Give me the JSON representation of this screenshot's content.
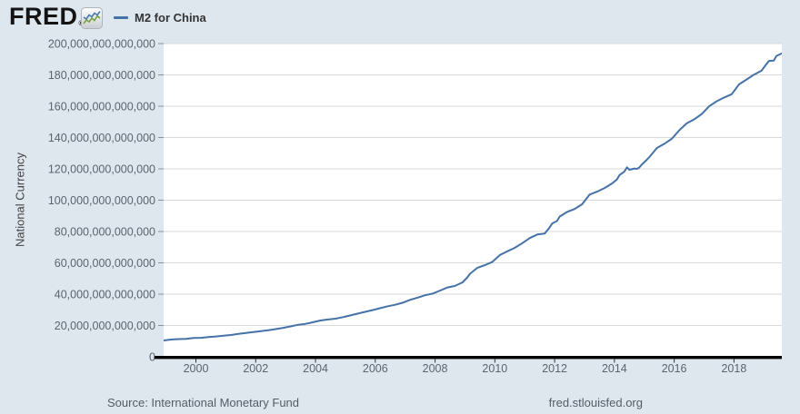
{
  "header": {
    "logo_text": "FRED",
    "registered_mark": "®",
    "legend": {
      "series_label": "M2 for China"
    }
  },
  "footer": {
    "source": "Source: International Monetary Fund",
    "site": "fred.stlouisfed.org"
  },
  "colors": {
    "background": "#dee6ee",
    "plot_background": "#ffffff",
    "gridline": "#d9d9d9",
    "series_line": "#4572a7",
    "axis_line": "#000000",
    "tick": "#8a9299",
    "xtick": "#333333",
    "label_text": "#5a6570",
    "logo_icon_blue": "#4a7bb0",
    "logo_icon_green": "#79a23e"
  },
  "chart_data": {
    "type": "line",
    "title": "M2 for China",
    "xlabel": "",
    "ylabel": "National Currency",
    "unit": "National Currency (units)",
    "value_multiplier": 1000000000000,
    "grid": "horizontal",
    "legend_position": "top-left",
    "x_range": [
      1998.92,
      2019.6
    ],
    "ylim_trillions": [
      0,
      200
    ],
    "y_ticks_trillions": [
      0,
      20,
      40,
      60,
      80,
      100,
      120,
      140,
      160,
      180,
      200
    ],
    "y_tick_labels": [
      "0",
      "20,000,000,000,000",
      "40,000,000,000,000",
      "60,000,000,000,000",
      "80,000,000,000,000",
      "100,000,000,000,000",
      "120,000,000,000,000",
      "140,000,000,000,000",
      "160,000,000,000,000",
      "180,000,000,000,000",
      "200,000,000,000,000"
    ],
    "x_tick_labels": [
      "2000",
      "2002",
      "2004",
      "2006",
      "2008",
      "2010",
      "2012",
      "2014",
      "2016",
      "2018"
    ],
    "x_ticks_years": [
      2000,
      2002,
      2004,
      2006,
      2008,
      2010,
      2012,
      2014,
      2016,
      2018
    ],
    "series": [
      {
        "name": "M2 for China",
        "color": "#4572a7",
        "points_year_trillions": [
          [
            1998.92,
            10.45
          ],
          [
            1999.17,
            11.03
          ],
          [
            1999.42,
            11.29
          ],
          [
            1999.67,
            11.45
          ],
          [
            1999.92,
            11.99
          ],
          [
            2000.17,
            12.13
          ],
          [
            2000.42,
            12.61
          ],
          [
            2000.67,
            13.0
          ],
          [
            2000.92,
            13.46
          ],
          [
            2001.17,
            13.89
          ],
          [
            2001.42,
            14.6
          ],
          [
            2001.67,
            15.19
          ],
          [
            2001.92,
            15.83
          ],
          [
            2002.17,
            16.41
          ],
          [
            2002.42,
            16.92
          ],
          [
            2002.67,
            17.7
          ],
          [
            2002.92,
            18.5
          ],
          [
            2003.17,
            19.42
          ],
          [
            2003.42,
            20.49
          ],
          [
            2003.67,
            21.07
          ],
          [
            2003.92,
            22.1
          ],
          [
            2004.17,
            23.18
          ],
          [
            2004.42,
            23.83
          ],
          [
            2004.67,
            24.37
          ],
          [
            2004.92,
            25.32
          ],
          [
            2005.17,
            26.46
          ],
          [
            2005.42,
            27.57
          ],
          [
            2005.67,
            28.73
          ],
          [
            2005.92,
            29.88
          ],
          [
            2006.17,
            31.05
          ],
          [
            2006.42,
            32.28
          ],
          [
            2006.67,
            33.19
          ],
          [
            2006.92,
            34.56
          ],
          [
            2007.17,
            36.41
          ],
          [
            2007.42,
            37.78
          ],
          [
            2007.67,
            39.31
          ],
          [
            2007.92,
            40.34
          ],
          [
            2008.17,
            42.31
          ],
          [
            2008.42,
            44.31
          ],
          [
            2008.67,
            45.29
          ],
          [
            2008.92,
            47.52
          ],
          [
            2009.08,
            50.7
          ],
          [
            2009.17,
            53.06
          ],
          [
            2009.42,
            56.89
          ],
          [
            2009.67,
            58.54
          ],
          [
            2009.92,
            60.62
          ],
          [
            2010.17,
            65.0
          ],
          [
            2010.42,
            67.39
          ],
          [
            2010.67,
            69.64
          ],
          [
            2010.92,
            72.59
          ],
          [
            2011.17,
            75.81
          ],
          [
            2011.42,
            78.08
          ],
          [
            2011.67,
            78.74
          ],
          [
            2011.83,
            82.55
          ],
          [
            2011.92,
            85.16
          ],
          [
            2012.08,
            86.72
          ],
          [
            2012.17,
            89.56
          ],
          [
            2012.42,
            92.5
          ],
          [
            2012.67,
            94.37
          ],
          [
            2012.92,
            97.42
          ],
          [
            2013.17,
            103.61
          ],
          [
            2013.42,
            105.45
          ],
          [
            2013.67,
            107.74
          ],
          [
            2013.92,
            110.65
          ],
          [
            2014.08,
            113.18
          ],
          [
            2014.17,
            116.07
          ],
          [
            2014.33,
            118.23
          ],
          [
            2014.42,
            120.96
          ],
          [
            2014.5,
            119.42
          ],
          [
            2014.67,
            120.21
          ],
          [
            2014.75,
            119.92
          ],
          [
            2014.83,
            120.85
          ],
          [
            2014.92,
            122.84
          ],
          [
            2015.08,
            125.74
          ],
          [
            2015.17,
            127.53
          ],
          [
            2015.42,
            133.34
          ],
          [
            2015.67,
            135.98
          ],
          [
            2015.92,
            139.23
          ],
          [
            2016.17,
            144.62
          ],
          [
            2016.42,
            149.05
          ],
          [
            2016.67,
            151.64
          ],
          [
            2016.92,
            155.01
          ],
          [
            2017.17,
            159.96
          ],
          [
            2017.42,
            163.13
          ],
          [
            2017.67,
            165.57
          ],
          [
            2017.92,
            167.68
          ],
          [
            2018.17,
            173.99
          ],
          [
            2018.42,
            177.02
          ],
          [
            2018.67,
            180.17
          ],
          [
            2018.92,
            182.67
          ],
          [
            2019.08,
            186.74
          ],
          [
            2019.17,
            188.94
          ],
          [
            2019.33,
            189.12
          ],
          [
            2019.42,
            192.14
          ],
          [
            2019.58,
            193.55
          ]
        ]
      }
    ]
  }
}
